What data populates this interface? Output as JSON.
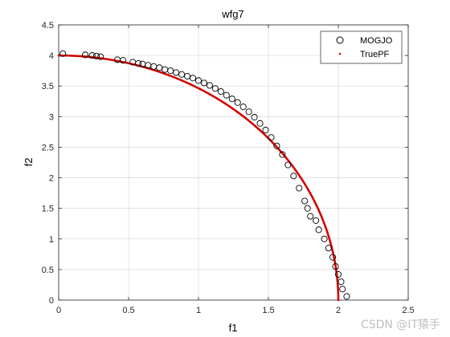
{
  "chart_data": {
    "type": "scatter",
    "title": "wfg7",
    "xlabel": "f1",
    "ylabel": "f2",
    "xlim": [
      0,
      2.5
    ],
    "ylim": [
      0,
      4.5
    ],
    "xticks": [
      "0",
      "0.5",
      "1",
      "1.5",
      "2",
      "2.5"
    ],
    "yticks": [
      "0",
      "0.5",
      "1",
      "1.5",
      "2",
      "2.5",
      "3",
      "3.5",
      "4",
      "4.5"
    ],
    "grid": true,
    "legend_position": "top-right",
    "series": [
      {
        "name": "MOGJO",
        "marker": "open-circle",
        "color": "#000000",
        "points": [
          [
            0.03,
            4.03
          ],
          [
            0.19,
            4.01
          ],
          [
            0.24,
            4.0
          ],
          [
            0.27,
            3.99
          ],
          [
            0.3,
            3.98
          ],
          [
            0.42,
            3.93
          ],
          [
            0.46,
            3.92
          ],
          [
            0.53,
            3.89
          ],
          [
            0.57,
            3.87
          ],
          [
            0.6,
            3.86
          ],
          [
            0.64,
            3.84
          ],
          [
            0.68,
            3.82
          ],
          [
            0.72,
            3.8
          ],
          [
            0.76,
            3.77
          ],
          [
            0.8,
            3.75
          ],
          [
            0.84,
            3.72
          ],
          [
            0.88,
            3.69
          ],
          [
            0.92,
            3.66
          ],
          [
            0.96,
            3.63
          ],
          [
            1.0,
            3.59
          ],
          [
            1.04,
            3.55
          ],
          [
            1.08,
            3.51
          ],
          [
            1.12,
            3.46
          ],
          [
            1.16,
            3.41
          ],
          [
            1.2,
            3.35
          ],
          [
            1.24,
            3.29
          ],
          [
            1.28,
            3.23
          ],
          [
            1.32,
            3.16
          ],
          [
            1.36,
            3.08
          ],
          [
            1.4,
            2.99
          ],
          [
            1.44,
            2.89
          ],
          [
            1.48,
            2.78
          ],
          [
            1.52,
            2.66
          ],
          [
            1.56,
            2.52
          ],
          [
            1.6,
            2.38
          ],
          [
            1.64,
            2.21
          ],
          [
            1.68,
            2.03
          ],
          [
            1.72,
            1.83
          ],
          [
            1.76,
            1.62
          ],
          [
            1.78,
            1.5
          ],
          [
            1.8,
            1.37
          ],
          [
            1.84,
            1.3
          ],
          [
            1.86,
            1.15
          ],
          [
            1.9,
            1.0
          ],
          [
            1.93,
            0.85
          ],
          [
            1.96,
            0.7
          ],
          [
            1.98,
            0.55
          ],
          [
            2.0,
            0.42
          ],
          [
            2.02,
            0.3
          ],
          [
            2.03,
            0.18
          ],
          [
            2.06,
            0.06
          ]
        ]
      },
      {
        "name": "TruePF",
        "marker": "dot",
        "color": "#d40000",
        "curve": "ellipse",
        "a": 2,
        "b": 4
      }
    ]
  },
  "watermark": "CSDN @IT猿手"
}
